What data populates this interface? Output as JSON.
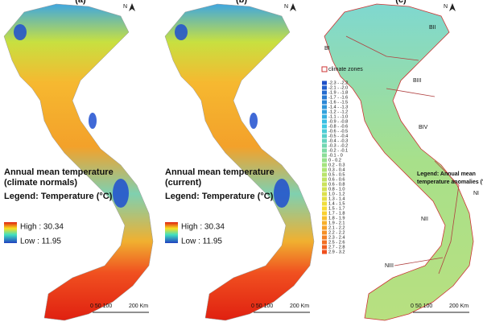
{
  "panels": [
    {
      "label": "(a)",
      "north": "N",
      "title_lines": [
        "Annual mean temperature",
        "(climate normals)"
      ],
      "legend_title": "Legend: Temperature (°C)",
      "high": "High : 30.34",
      "low": "Low : 11.95",
      "scale": [
        "0 50 100",
        "200 Km"
      ]
    },
    {
      "label": "(b)",
      "north": "N",
      "title_lines": [
        "Annual mean temperature",
        "(current)"
      ],
      "legend_title": "Legend: Temperature (°C)",
      "high": "High : 30.34",
      "low": "Low : 11.95",
      "scale": [
        "0 50 100",
        "200 Km"
      ]
    },
    {
      "label": "(c)",
      "north": "N",
      "zones_legend": "climate zones",
      "legend_title_lines": [
        "Legend: Annual mean",
        "temperature anomalies (°C)"
      ],
      "zones": [
        "BI",
        "BII",
        "BIII",
        "BIV",
        "NI",
        "NII",
        "NIII"
      ],
      "classes": [
        "-2.3 - -2.2",
        "-2.1 - -2.0",
        "-1.9 - -1.8",
        "-1.7 - -1.6",
        "-1.6 - -1.5",
        "-1.4 - -1.3",
        "-1.2 - -1.2",
        "-1.1 - -1.0",
        "-0.9 - -0.8",
        "-0.8 - -0.6",
        "-0.6 - -0.5",
        "-0.5 - -0.4",
        "-0.4 - -0.3",
        "-0.3 - -0.2",
        "-0.2 - -0.1",
        "-0.1 - 0",
        "0 - 0.2",
        "0.2 - 0.3",
        "0.3 - 0.4",
        "0.5 - 0.5",
        "0.6 - 0.6",
        "0.6 - 0.8",
        "0.8 - 1.0",
        "1.0 - 1.2",
        "1.3 - 1.4",
        "1.4 - 1.5",
        "1.5 - 1.7",
        "1.7 - 1.8",
        "1.8 - 1.9",
        "1.9 - 2.1",
        "2.1 - 2.2",
        "2.2 - 2.2",
        "2.3 - 2.4",
        "2.5 - 2.6",
        "2.7 - 2.8",
        "2.9 - 3.2"
      ],
      "scale": [
        "0 50 100",
        "200 Km"
      ]
    }
  ]
}
